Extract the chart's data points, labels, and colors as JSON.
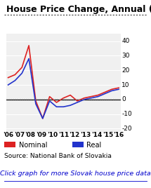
{
  "title": "House Price Change, Annual (%)",
  "nominal": [
    15,
    17,
    22,
    37,
    -1,
    -13,
    2,
    -2,
    1,
    3,
    -1,
    1,
    2,
    3,
    5,
    7,
    8
  ],
  "real": [
    10,
    13,
    18,
    28,
    -3,
    -13,
    -1,
    -5,
    -5,
    -4,
    -2,
    0,
    1,
    2,
    4,
    6,
    7
  ],
  "x_labels": [
    "'06",
    "'07",
    "'08",
    "'09",
    "'10",
    "'11",
    "'12",
    "'13",
    "'14",
    "'15",
    "'16"
  ],
  "x_positions": [
    0,
    1.6,
    3.2,
    4.8,
    6.4,
    8.0,
    9.6,
    11.2,
    12.8,
    14.4,
    16.0
  ],
  "nominal_color": "#dd2222",
  "real_color": "#2233cc",
  "ylim": [
    -22,
    45
  ],
  "yticks": [
    -20,
    -10,
    0,
    10,
    20,
    30,
    40
  ],
  "grid_color": "#e0e0e0",
  "background_color": "#f0f0f0",
  "source_text": "Source: National Bank of Slovakia",
  "link_text": "Click graph for more Slovak house price data",
  "legend_nominal": "Nominal",
  "legend_real": "Real",
  "title_fontsize": 9.0,
  "tick_fontsize": 6.5,
  "legend_fontsize": 7.0,
  "source_fontsize": 6.5,
  "link_fontsize": 6.8,
  "link_color": "#0000cc",
  "link_bg": "#dde8ff"
}
